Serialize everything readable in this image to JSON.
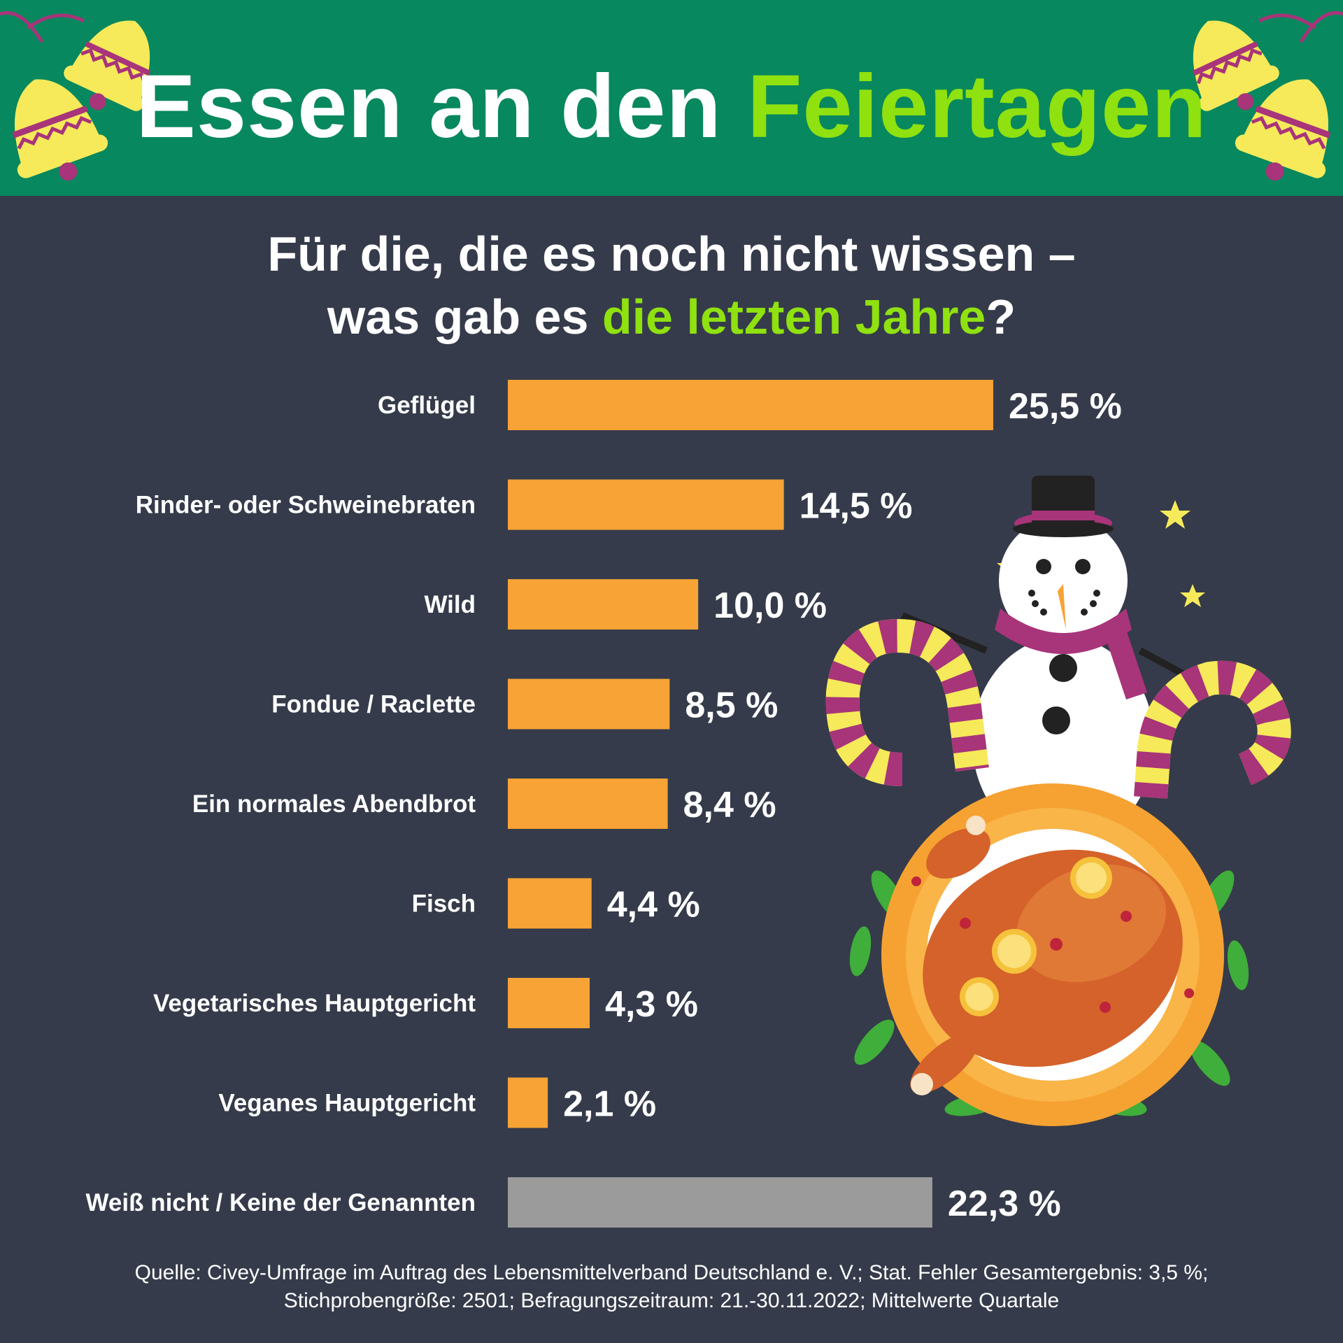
{
  "header": {
    "title_main": "Essen an den ",
    "title_accent": "Feiertagen"
  },
  "subtitle": {
    "line1": "Für die, die es noch nicht wissen –",
    "line2_main": "was gab es ",
    "line2_accent": "die letzten Jahre",
    "line2_end": "?"
  },
  "colors": {
    "header_bg": "#07885e",
    "background": "#353b4a",
    "accent_green": "#8fe10f",
    "bar_orange": "#f7a335",
    "bar_gray": "#9b9b9b",
    "text": "#ffffff"
  },
  "chart_data": {
    "type": "bar",
    "orientation": "horizontal",
    "categories": [
      "Geflügel",
      "Rinder- oder Schweinebraten",
      "Wild",
      "Fondue / Raclette",
      "Ein normales Abendbrot",
      "Fisch",
      "Vegetarisches Hauptgericht",
      "Veganes Hauptgericht",
      "Weiß nicht / Keine der Genannten"
    ],
    "values": [
      25.5,
      14.5,
      10.0,
      8.5,
      8.4,
      4.4,
      4.3,
      2.1,
      22.3
    ],
    "value_labels": [
      "25,5 %",
      "14,5 %",
      "10,0 %",
      "8,5 %",
      "8,4 %",
      "4,4 %",
      "4,3 %",
      "2,1 %",
      "22,3 %"
    ],
    "bar_colors": [
      "#f7a335",
      "#f7a335",
      "#f7a335",
      "#f7a335",
      "#f7a335",
      "#f7a335",
      "#f7a335",
      "#f7a335",
      "#9b9b9b"
    ],
    "unit": "%",
    "xlim": [
      0,
      25.5
    ],
    "grid": false,
    "legend": "none"
  },
  "source": {
    "line1": "Quelle: Civey-Umfrage im Auftrag des Lebensmittelverband Deutschland e. V.; Stat. Fehler Gesamtergebnis: 3,5 %;",
    "line2": "Stichprobengröße: 2501; Befragungszeitraum: 21.-30.11.2022; Mittelwerte Quartale"
  },
  "decorations": {
    "top_left": "christmas-bells-icon",
    "top_right": "christmas-bells-icon",
    "illustration": "snowman-roast-turkey-illustration"
  }
}
